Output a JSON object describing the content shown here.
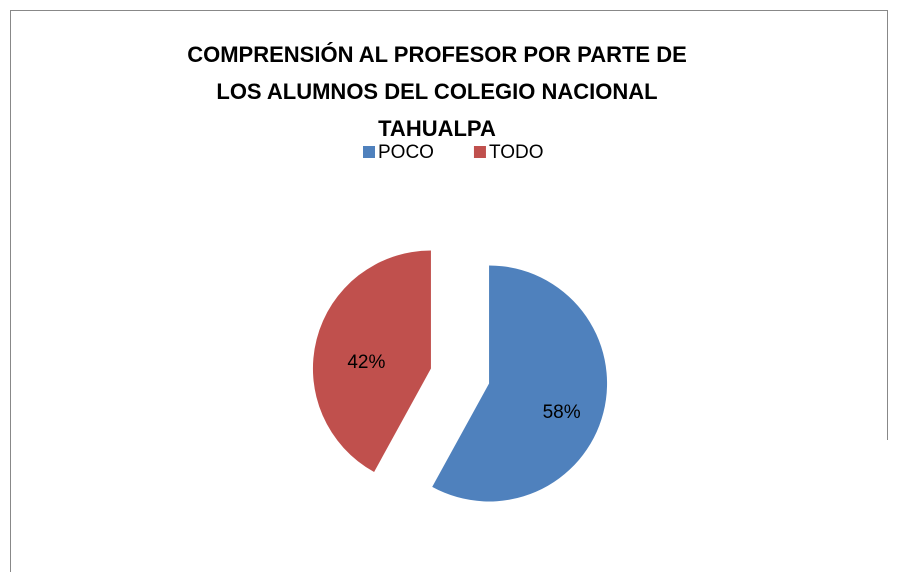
{
  "chart_data": {
    "type": "pie",
    "title": "COMPRENSIÓN AL PROFESOR POR PARTE DE LOS ALUMNOS DEL COLEGIO NACIONAL TAHUALPA",
    "categories": [
      "POCO",
      "TODO"
    ],
    "values": [
      58,
      42
    ],
    "value_labels": [
      "58%",
      "42%"
    ],
    "colors": [
      "#4f81bd",
      "#c0504d"
    ],
    "legend": "top"
  }
}
